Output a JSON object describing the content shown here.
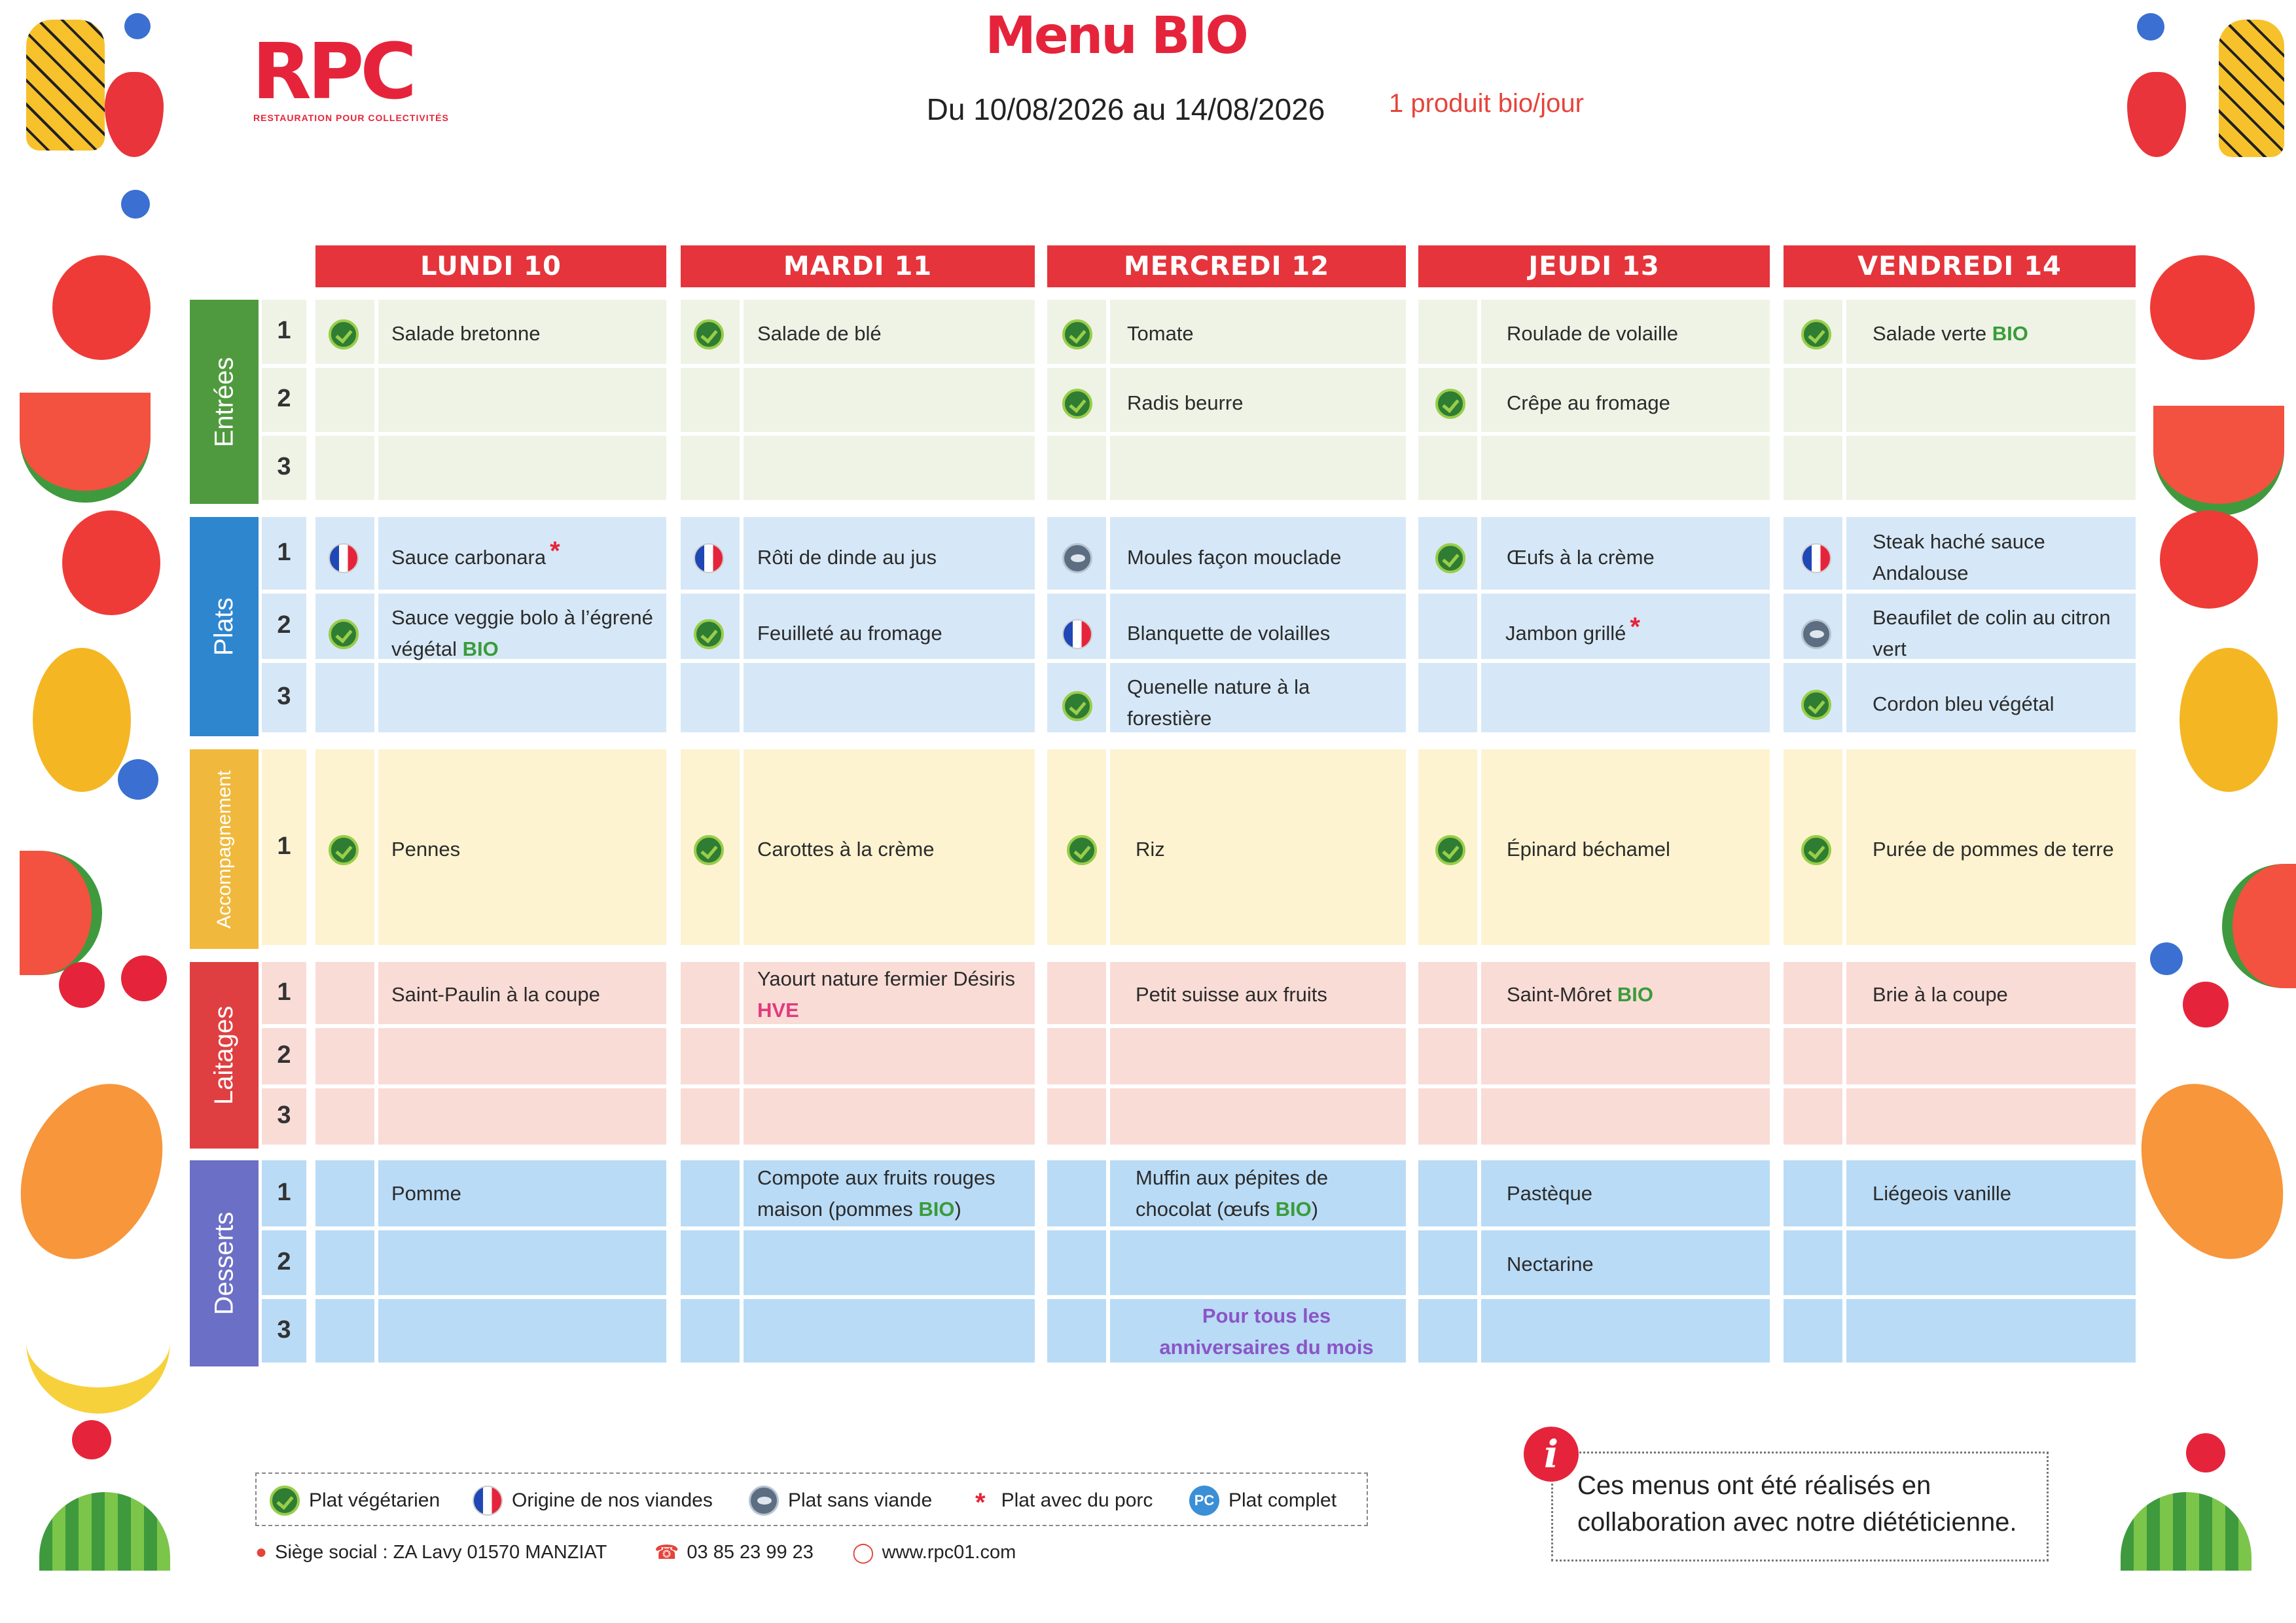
{
  "header": {
    "logo": "RPC",
    "logo_subtitle": "RESTAURATION POUR COLLECTIVITÉS",
    "title": "Menu BIO",
    "dates": "Du 10/08/2026 au 14/08/2026",
    "tagline": "1 produit bio/jour"
  },
  "days": [
    "LUNDI 10",
    "MARDI 11",
    "MERCREDI 12",
    "JEUDI 13",
    "VENDREDI 14"
  ],
  "sections": [
    "Entrées",
    "Plats",
    "Accompagnement",
    "Laitages",
    "Desserts"
  ],
  "row_numbers": [
    "1",
    "2",
    "3"
  ],
  "colors": {
    "header_red": "#e5343b",
    "entrees": "#4f9a3e",
    "plats": "#2e86cf",
    "accompagnement": "#f0b93d",
    "laitages": "#df3f41",
    "desserts": "#6c6fc6",
    "bio_green": "#3a9c3a",
    "hve_pink": "#e33a7e"
  },
  "menu": {
    "lundi": {
      "e1": "Salade bretonne",
      "p1": "Sauce carbonara",
      "p2": "Sauce veggie bolo à l’égrené végétal",
      "a1": "Pennes",
      "l1": "Saint-Paulin à la coupe",
      "d1": "Pomme"
    },
    "mardi": {
      "e1": "Salade de blé",
      "p1": "Rôti de dinde au jus",
      "p2": "Feuilleté au fromage",
      "a1": "Carottes à la crème",
      "l1": "Yaourt nature fermier Désiris",
      "d1_a": "Compote aux fruits rouges maison (pommes ",
      "d1_b": ")"
    },
    "mercredi": {
      "e1": "Tomate",
      "e2": "Radis beurre",
      "p1": "Moules façon mouclade",
      "p2": "Blanquette de volailles",
      "p3": "Quenelle nature à la forestière",
      "a1": "Riz",
      "l1": "Petit suisse aux fruits",
      "d1_a": "Muffin aux pépites de chocolat (œufs ",
      "d1_b": ")",
      "d3": "Pour tous les anniversaires du mois"
    },
    "jeudi": {
      "e1": "Roulade de volaille",
      "e2": "Crêpe au fromage",
      "p1": "Œufs à la crème",
      "p2": "Jambon grillé",
      "a1": "Épinard béchamel",
      "l1": "Saint-Môret",
      "d1": "Pastèque",
      "d2": "Nectarine"
    },
    "vendredi": {
      "e1": "Salade verte",
      "p1": "Steak haché sauce Andalouse",
      "p2": "Beaufilet de colin au citron vert",
      "p3": "Cordon bleu végétal",
      "a1": "Purée de pommes de terre",
      "l1": "Brie à la coupe",
      "d1": "Liégeois vanille"
    }
  },
  "tags": {
    "bio": "BIO",
    "hve": "HVE",
    "pork_mark": "*"
  },
  "legend": {
    "veg": "Plat végétarien",
    "origin": "Origine de nos viandes",
    "no_meat": "Plat sans viande",
    "pork": "Plat avec du porc",
    "complete": "Plat complet",
    "complete_icon": "PC"
  },
  "footer": {
    "address": "Siège social : ZA Lavy 01570 MANZIAT",
    "phone": "03 85 23 99 23",
    "website": "www.rpc01.com"
  },
  "info": {
    "icon": "i",
    "text": "Ces menus ont été réalisés en collaboration avec notre diététicienne."
  }
}
